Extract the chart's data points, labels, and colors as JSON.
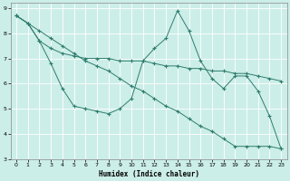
{
  "xlabel": "Humidex (Indice chaleur)",
  "background_color": "#cceee8",
  "line_color": "#2e7d6e",
  "grid_color": "#ffffff",
  "xlim": [
    -0.5,
    23.5
  ],
  "ylim": [
    3,
    9.2
  ],
  "xticks": [
    0,
    1,
    2,
    3,
    4,
    5,
    6,
    7,
    8,
    9,
    10,
    11,
    12,
    13,
    14,
    15,
    16,
    17,
    18,
    19,
    20,
    21,
    22,
    23
  ],
  "yticks": [
    3,
    4,
    5,
    6,
    7,
    8,
    9
  ],
  "line1_x": [
    0,
    1,
    2,
    3,
    4,
    5,
    6,
    7,
    8,
    9,
    10,
    11,
    12,
    13,
    14,
    15,
    16,
    17,
    18,
    19,
    20,
    21,
    22,
    23
  ],
  "line1_y": [
    8.7,
    8.4,
    7.7,
    6.8,
    5.8,
    5.1,
    5.0,
    4.9,
    4.8,
    5.0,
    5.4,
    6.9,
    7.4,
    7.8,
    8.9,
    8.1,
    6.9,
    6.2,
    5.8,
    6.3,
    6.3,
    5.7,
    4.7,
    3.4
  ],
  "line2_x": [
    0,
    1,
    2,
    3,
    4,
    5,
    6,
    7,
    8,
    9,
    10,
    11,
    12,
    13,
    14,
    15,
    16,
    17,
    18,
    19,
    20,
    21,
    22,
    23
  ],
  "line2_y": [
    8.7,
    8.4,
    8.1,
    7.8,
    7.5,
    7.2,
    6.9,
    6.7,
    6.5,
    6.2,
    5.9,
    5.7,
    5.4,
    5.1,
    4.9,
    4.6,
    4.3,
    4.1,
    3.8,
    3.5,
    3.5,
    3.5,
    3.5,
    3.4
  ],
  "line3_x": [
    0,
    1,
    2,
    3,
    4,
    5,
    6,
    7,
    8,
    9,
    10,
    11,
    12,
    13,
    14,
    15,
    16,
    17,
    18,
    19,
    20,
    21,
    22,
    23
  ],
  "line3_y": [
    8.7,
    8.4,
    7.7,
    7.4,
    7.2,
    7.1,
    7.0,
    7.0,
    7.0,
    6.9,
    6.9,
    6.9,
    6.8,
    6.7,
    6.7,
    6.6,
    6.6,
    6.5,
    6.5,
    6.4,
    6.4,
    6.3,
    6.2,
    6.1
  ]
}
